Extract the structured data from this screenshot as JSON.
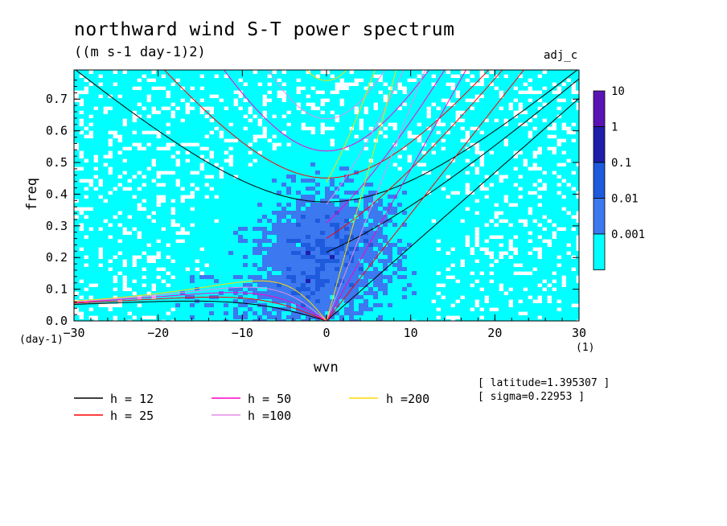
{
  "chart_data": {
    "type": "heatmap",
    "title": "northward wind S-T power spectrum",
    "units": "((m s-1 day-1)2)",
    "tag": "adj_c",
    "xlabel": "wvn",
    "ylabel": "freq",
    "x_unit": "(1)",
    "y_unit": "(day-1)",
    "xlim": [
      -30,
      30
    ],
    "ylim": [
      0,
      0.8
    ],
    "x_ticks": [
      "-30",
      "-20",
      "-10",
      "0",
      "10",
      "20",
      "30"
    ],
    "y_ticks": [
      "0.0",
      "0.1",
      "0.2",
      "0.3",
      "0.4",
      "0.5",
      "0.6",
      "0.7"
    ],
    "colorbar": {
      "labels": [
        "10",
        "1",
        "0.1",
        "0.01",
        "0.001"
      ],
      "colors": [
        "#5a14b4",
        "#1e1eaa",
        "#1e5adc",
        "#3c78f0",
        "#00ffff"
      ]
    },
    "info": [
      "[ latitude=1.395307 ]",
      "[ sigma=0.22953 ]"
    ],
    "dispersion_curves": [
      {
        "label": "h = 12",
        "color": "#000000",
        "h": 12
      },
      {
        "label": "h = 25",
        "color": "#ff0000",
        "h": 25
      },
      {
        "label": "h = 50",
        "color": "#ff00cc",
        "h": 50
      },
      {
        "label": "h =100",
        "color": "#e68ce6",
        "h": 100
      },
      {
        "label": "h =200",
        "color": "#ffdc00",
        "h": 200
      }
    ]
  }
}
